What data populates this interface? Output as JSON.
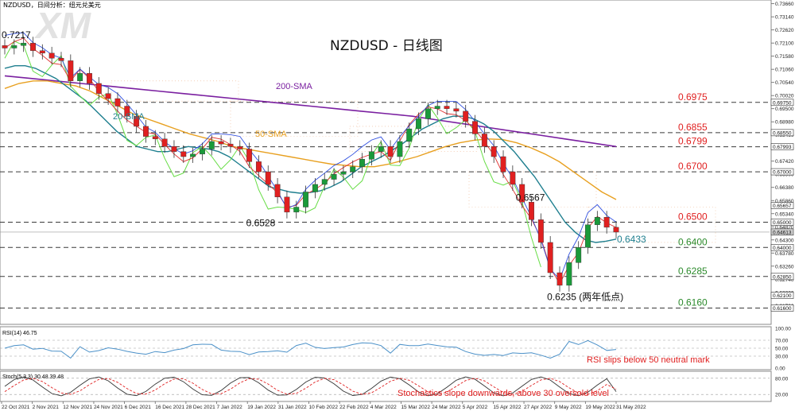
{
  "header": {
    "symbol_caption": "NZDUSD，日间分析：纽元兑美元"
  },
  "chart_data": {
    "type": "candlestick",
    "title": "NZDUSD - 日线图",
    "watermark": "XM",
    "price_axis": {
      "ylim": [
        0.6108,
        0.7368
      ],
      "ticks": [
        "0.73660",
        "0.73140",
        "0.72620",
        "0.72100",
        "0.71580",
        "0.71060",
        "0.70540",
        "0.70020",
        "0.69500",
        "0.68980",
        "0.68460",
        "0.67940",
        "0.67420",
        "0.66900",
        "0.66380",
        "0.65860",
        "0.65340",
        "0.64820",
        "0.64300",
        "0.63780",
        "0.63260",
        "0.62740",
        "0.62220",
        "0.61700"
      ],
      "boxed_ticks": [
        "0.69750",
        "0.68550",
        "0.67993",
        "0.67000",
        "0.65657",
        "0.65000",
        "0.64613",
        "0.64000",
        "0.62850",
        "0.62100",
        "0.61600"
      ],
      "current_price": "0.64613"
    },
    "time_axis": [
      "22 Oct 2021",
      "2 Nov 2021",
      "12 Nov 2021",
      "24 Nov 2021",
      "6 Dec 2021",
      "16 Dec 2021",
      "28 Dec 2021",
      "7 Jan 2022",
      "19 Jan 2022",
      "31 Jan 2022",
      "10 Feb 2022",
      "22 Feb 2022",
      "4 Mar 2022",
      "15 Mar 2022",
      "24 Mar 2022",
      "5 Apr 2022",
      "15 Apr 2022",
      "27 Apr 2022",
      "9 May 2022",
      "19 May 2022",
      "31 May 2022"
    ],
    "levels": [
      {
        "value": 0.6975,
        "label": "0.6975"
      },
      {
        "value": 0.6855,
        "label": "0.6855"
      },
      {
        "value": 0.6799,
        "label": "0.6799"
      },
      {
        "value": 0.67,
        "label": "0.6700"
      },
      {
        "value": 0.65,
        "label": "0.6500"
      },
      {
        "value": 0.64,
        "label": "0.6400"
      },
      {
        "value": 0.6285,
        "label": "0.6285"
      },
      {
        "value": 0.616,
        "label": "0.6160"
      }
    ],
    "annotations": [
      {
        "text": "0.7217",
        "x": 0,
        "y": 0.7217
      },
      {
        "text": "0.6528",
        "x": 26,
        "y": 0.6528
      },
      {
        "text": "0.6567",
        "x": 55,
        "y": 0.6567
      },
      {
        "text": "0.6235 (两年低点)",
        "x": 58,
        "y": 0.6235
      },
      {
        "text": "0.6433",
        "x": 64,
        "y": 0.6433
      }
    ],
    "indicator_labels": {
      "sma200": "200-SMA",
      "sma50": "50-SMA",
      "sma20": "20-SMA"
    },
    "closes": [
      0.719,
      0.72,
      0.721,
      0.718,
      0.717,
      0.715,
      0.714,
      0.706,
      0.709,
      0.705,
      0.701,
      0.699,
      0.696,
      0.692,
      0.688,
      0.684,
      0.683,
      0.68,
      0.678,
      0.676,
      0.677,
      0.679,
      0.682,
      0.681,
      0.68,
      0.679,
      0.674,
      0.67,
      0.665,
      0.66,
      0.654,
      0.656,
      0.662,
      0.665,
      0.667,
      0.669,
      0.67,
      0.672,
      0.675,
      0.678,
      0.68,
      0.676,
      0.682,
      0.687,
      0.691,
      0.695,
      0.696,
      0.695,
      0.694,
      0.69,
      0.685,
      0.68,
      0.676,
      0.67,
      0.665,
      0.658,
      0.651,
      0.642,
      0.63,
      0.625,
      0.634,
      0.64,
      0.649,
      0.652,
      0.648,
      0.6461
    ],
    "sma20": [
      0.711,
      0.712,
      0.712,
      0.711,
      0.709,
      0.707,
      0.704,
      0.701,
      0.698,
      0.694,
      0.69,
      0.686,
      0.683,
      0.68,
      0.679,
      0.678,
      0.678,
      0.679,
      0.68,
      0.6795,
      0.679,
      0.678,
      0.676,
      0.673,
      0.67,
      0.667,
      0.664,
      0.663,
      0.662,
      0.6615,
      0.6618,
      0.6625,
      0.664,
      0.666,
      0.669,
      0.672,
      0.674,
      0.676,
      0.6785,
      0.681,
      0.684,
      0.687,
      0.689,
      0.691,
      0.692,
      0.692,
      0.691,
      0.689,
      0.686,
      0.682,
      0.678,
      0.673,
      0.668,
      0.662,
      0.656,
      0.65,
      0.646,
      0.643,
      0.642,
      0.6425,
      0.6433
    ],
    "sma50": [
      0.703,
      0.705,
      0.706,
      0.706,
      0.705,
      0.704,
      0.702,
      0.699,
      0.696,
      0.693,
      0.691,
      0.689,
      0.687,
      0.685,
      0.6835,
      0.682,
      0.68,
      0.679,
      0.678,
      0.677,
      0.676,
      0.675,
      0.674,
      0.673,
      0.6725,
      0.672,
      0.672,
      0.673,
      0.6745,
      0.676,
      0.678,
      0.68,
      0.6815,
      0.6825,
      0.683,
      0.6828,
      0.6815,
      0.6795,
      0.677,
      0.674,
      0.67,
      0.666,
      0.662,
      0.659
    ],
    "sma200": [
      0.708,
      0.707,
      0.706,
      0.705,
      0.704,
      0.703,
      0.702,
      0.701,
      0.7,
      0.699,
      0.698,
      0.697,
      0.696,
      0.695,
      0.694,
      0.693,
      0.692,
      0.6905,
      0.689,
      0.6875,
      0.686,
      0.6845,
      0.683,
      0.6815,
      0.68
    ],
    "rsi": {
      "label": "RSI(14) 46.75",
      "ticks": [
        "100.00",
        "70.00",
        "50.00",
        "30.00",
        "0.00"
      ],
      "note": "RSI slips below 50 neutral mark",
      "value": 46.75
    },
    "stoch": {
      "label": "Stoch(5,3,3) 30.48 39.48",
      "ticks": [
        "80.00",
        "20.00"
      ],
      "note": "Stochastics slope downwards, above 30 oversold level",
      "k": 30.48,
      "d": 39.48
    }
  },
  "colors": {
    "bull": "#1a9a3a",
    "bear": "#e02020",
    "sma20": "#1f7f8f",
    "sma50": "#e8a020",
    "sma200": "#7a1fa0",
    "chikou": "#66dd44",
    "tenkan": "#e03030",
    "kijun": "#3050e0",
    "level": "#3a3a3a",
    "label_red": "#e02020",
    "label_green": "#2c8a2c",
    "rsi": "#4a90c8",
    "cloud": "#e8a070"
  }
}
